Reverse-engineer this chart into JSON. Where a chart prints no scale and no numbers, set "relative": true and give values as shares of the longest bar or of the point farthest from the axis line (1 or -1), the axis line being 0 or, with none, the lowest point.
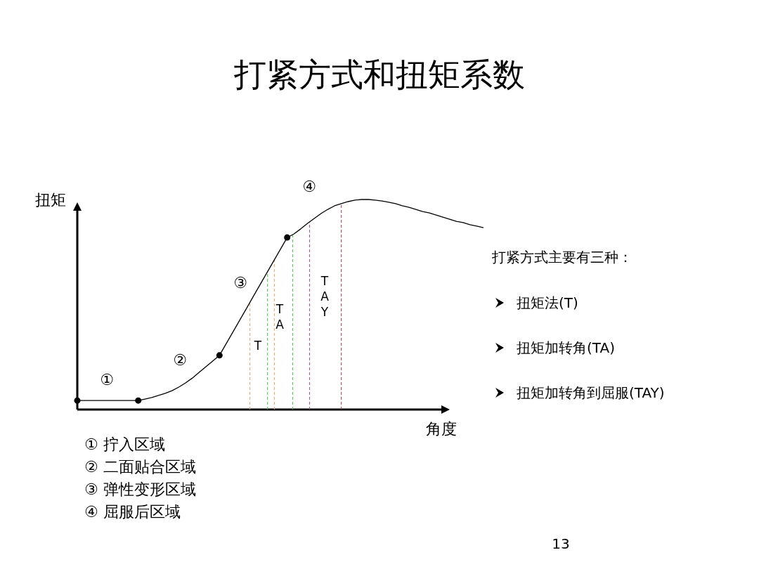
{
  "chart_data": {
    "type": "line",
    "title": "打紧方式和扭矩系数",
    "xlabel": "角度",
    "ylabel": "扭矩",
    "relative": true,
    "categories": [
      null,
      null,
      null,
      null,
      null,
      null,
      null,
      null,
      null,
      null,
      null,
      null,
      null,
      null,
      null,
      null,
      null,
      null,
      null,
      null,
      null,
      null,
      null,
      null,
      null,
      null,
      null,
      null,
      null,
      null,
      null,
      null,
      null,
      null,
      null,
      null,
      null,
      null,
      null,
      null,
      null,
      null,
      null,
      null,
      null,
      null,
      null,
      null,
      null,
      null,
      null,
      null,
      null,
      null,
      null,
      null,
      null,
      null,
      null,
      null,
      null
    ],
    "series": [
      {
        "color": "#000000",
        "values": [
          0.043,
          0.043,
          0.043,
          0.043,
          0.043,
          0.043,
          0.043,
          0.043,
          0.043,
          0.043,
          0.05,
          0.057,
          0.067,
          0.077,
          0.09,
          0.107,
          0.127,
          0.15,
          0.177,
          0.204,
          0.231,
          0.258,
          0.314,
          0.37,
          0.426,
          0.482,
          0.539,
          0.595,
          0.651,
          0.707,
          0.763,
          0.819,
          0.836,
          0.86,
          0.886,
          0.91,
          0.933,
          0.953,
          0.97,
          0.98,
          0.99,
          0.997,
          1,
          1,
          0.997,
          0.993,
          0.987,
          0.98,
          0.97,
          0.963,
          0.953,
          0.943,
          0.936,
          0.926,
          0.916,
          0.906,
          0.896,
          0.89,
          0.88,
          0.873,
          0.866
        ]
      }
    ],
    "annotations": [
      "①",
      "②",
      "③",
      "④",
      "T",
      "TA",
      "TAY",
      "打紧方式主要有三种：",
      "扭矩法(T)",
      "扭矩加转角(TA)",
      "扭矩加转角到屈服(TAY)",
      "① 拧入区域",
      "② 二面贴合区域",
      "③ 弹性变形区域",
      "④ 屈服后区域",
      "13"
    ]
  }
}
